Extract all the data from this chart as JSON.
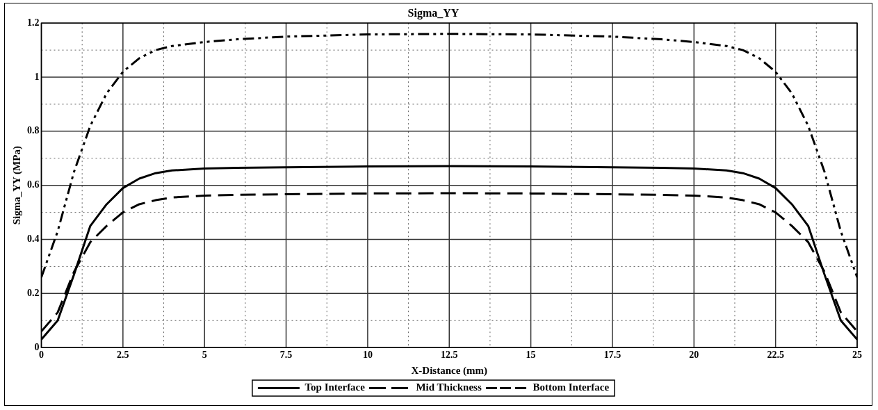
{
  "chart_data": {
    "type": "line",
    "title": "Sigma_YY",
    "xlabel": "X-Distance (mm)",
    "ylabel": "Sigma_YY (MPa)",
    "x": [
      0,
      0.5,
      1,
      1.5,
      2,
      2.5,
      3,
      3.5,
      4,
      5,
      6,
      7.5,
      10,
      12.5,
      15,
      17.5,
      19,
      20,
      21,
      21.5,
      22,
      22.5,
      23,
      23.5,
      24,
      24.5,
      25
    ],
    "series": [
      {
        "name": "Top Interface",
        "color": "#000000",
        "line_style": "solid",
        "values": [
          0.03,
          0.1,
          0.27,
          0.45,
          0.53,
          0.59,
          0.625,
          0.645,
          0.655,
          0.662,
          0.665,
          0.667,
          0.67,
          0.671,
          0.67,
          0.667,
          0.665,
          0.662,
          0.655,
          0.645,
          0.625,
          0.59,
          0.53,
          0.45,
          0.27,
          0.1,
          0.03
        ]
      },
      {
        "name": "Mid Thickness",
        "color": "#000000",
        "line_style": "dashed",
        "values": [
          0.06,
          0.13,
          0.28,
          0.39,
          0.45,
          0.5,
          0.53,
          0.545,
          0.555,
          0.562,
          0.565,
          0.567,
          0.57,
          0.571,
          0.57,
          0.567,
          0.565,
          0.562,
          0.555,
          0.545,
          0.53,
          0.5,
          0.45,
          0.39,
          0.28,
          0.13,
          0.06
        ]
      },
      {
        "name": "Bottom Interface",
        "color": "#000000",
        "line_style": "dashdot",
        "values": [
          0.26,
          0.43,
          0.65,
          0.82,
          0.94,
          1.02,
          1.07,
          1.1,
          1.115,
          1.13,
          1.14,
          1.15,
          1.158,
          1.16,
          1.158,
          1.15,
          1.14,
          1.13,
          1.115,
          1.1,
          1.07,
          1.02,
          0.94,
          0.82,
          0.65,
          0.43,
          0.26
        ]
      }
    ],
    "xlim": [
      0,
      25
    ],
    "xticks": [
      0,
      {
        "value": 1.25,
        "label": null
      },
      2.5,
      {
        "value": 3.75,
        "label": null
      },
      5,
      {
        "value": 6.25,
        "label": null
      },
      7.5,
      {
        "value": 8.75,
        "label": null
      },
      10,
      {
        "value": 11.25,
        "label": null
      },
      12.5,
      {
        "value": 13.75,
        "label": null
      },
      15,
      {
        "value": 16.25,
        "label": null
      },
      17.5,
      {
        "value": 18.75,
        "label": null
      },
      20,
      {
        "value": 21.25,
        "label": null
      },
      22.5,
      {
        "value": 23.75,
        "label": null
      },
      25
    ],
    "ylim": [
      0,
      1.2
    ],
    "yticks": [
      0,
      {
        "value": 0.1,
        "label": null
      },
      0.2,
      {
        "value": 0.3,
        "label": null
      },
      0.4,
      {
        "value": 0.5,
        "label": null
      },
      0.6,
      {
        "value": 0.7,
        "label": null
      },
      0.8,
      {
        "value": 0.9,
        "label": null
      },
      1,
      {
        "value": 1.1,
        "label": null
      },
      1.2
    ],
    "grid": true,
    "legend": "bottom",
    "marker": "none"
  }
}
